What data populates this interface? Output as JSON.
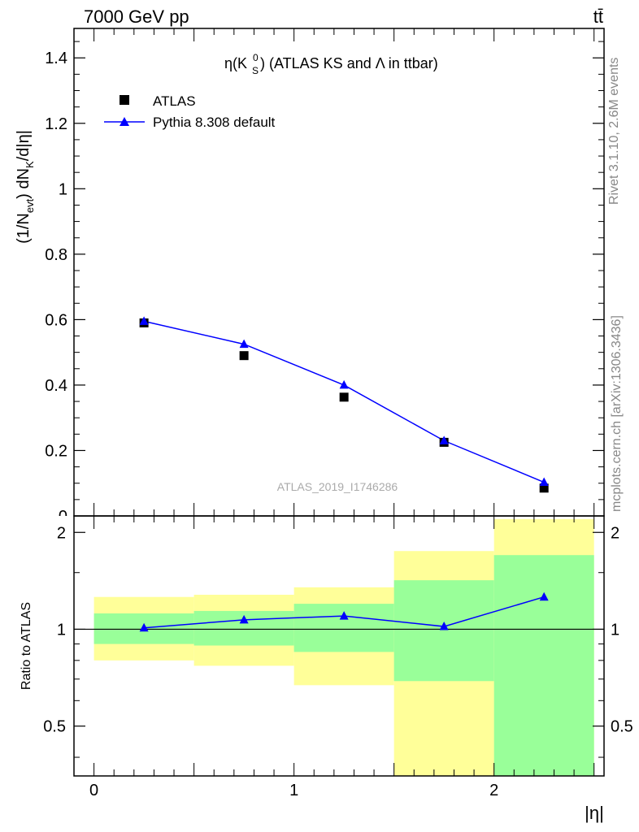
{
  "header": {
    "energy_label": "7000 GeV pp",
    "process_label": "tt̄"
  },
  "side_labels": {
    "rivet": "Rivet 3.1.10,  2.6M events",
    "mcplots": "mcplots.cern.ch [arXiv:1306.3436]"
  },
  "watermark": "ATLAS_2019_I1746286",
  "chart_data": [
    {
      "type": "scatter",
      "title": "η(K_S^0) (ATLAS KS and Λ in ttbar)",
      "ylabel": "(1/N_evt) dN_K/d|η|",
      "xlim": [
        -0.1,
        2.55
      ],
      "ylim": [
        0,
        1.49
      ],
      "yticks": [
        "0.2",
        "0.4",
        "0.6",
        "0.8",
        "1",
        "1.2",
        "1.4"
      ],
      "legend_position": "top-left",
      "series": [
        {
          "name": "ATLAS",
          "marker": "square",
          "color": "#000000",
          "x": [
            0.25,
            0.75,
            1.25,
            1.75,
            2.25
          ],
          "y": [
            0.59,
            0.49,
            0.363,
            0.225,
            0.085
          ]
        },
        {
          "name": "Pythia 8.308 default",
          "marker": "triangle",
          "color": "#0000ff",
          "x": [
            0.25,
            0.75,
            1.25,
            1.75,
            2.25
          ],
          "y": [
            0.595,
            0.525,
            0.4,
            0.23,
            0.103
          ]
        }
      ]
    },
    {
      "type": "line",
      "ylabel": "Ratio to ATLAS",
      "xlabel": "|η|",
      "xlim": [
        -0.1,
        2.55
      ],
      "ylim": [
        0.35,
        2.25
      ],
      "xticks": [
        "0",
        "1",
        "2"
      ],
      "yticks": [
        "0.5",
        "1",
        "2"
      ],
      "reference_line": 1,
      "bands": {
        "bin_edges": [
          0,
          0.5,
          1,
          1.5,
          2,
          2.5
        ],
        "yellow": {
          "color": "#ffff99",
          "low": [
            0.8,
            0.77,
            0.67,
            0.35,
            0.35
          ],
          "high": [
            1.26,
            1.28,
            1.35,
            1.75,
            2.2
          ]
        },
        "green": {
          "color": "#99ff99",
          "low": [
            0.9,
            0.89,
            0.85,
            0.69,
            0.35
          ],
          "high": [
            1.12,
            1.14,
            1.2,
            1.42,
            1.7
          ]
        }
      },
      "series": [
        {
          "name": "Pythia 8.308 default",
          "marker": "triangle",
          "color": "#0000ff",
          "x": [
            0.25,
            0.75,
            1.25,
            1.75,
            2.25
          ],
          "y": [
            1.01,
            1.07,
            1.1,
            1.02,
            1.26
          ]
        }
      ]
    }
  ]
}
